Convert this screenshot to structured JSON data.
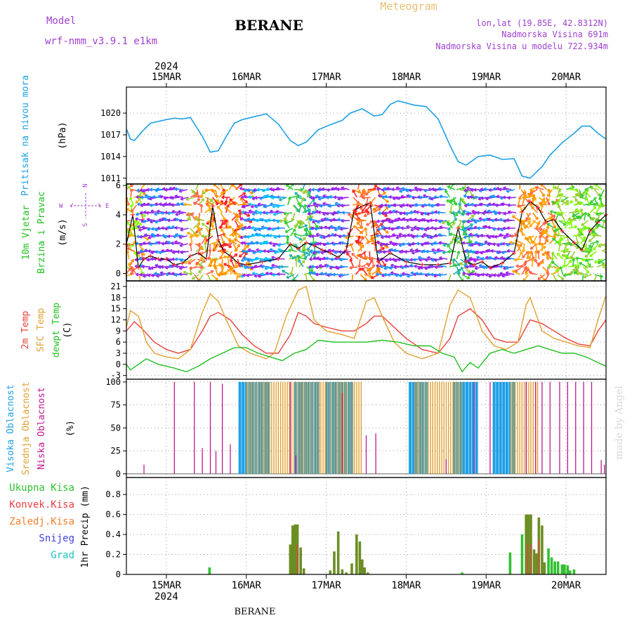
{
  "header": {
    "model_label": "Model",
    "model_name": "wrf-nmm_v3.9.1 e1km",
    "station": "BERANE",
    "product": "Meteogram",
    "coords": "lon,lat (19.85E, 42.8312N)",
    "elevation": "Nadmorska Visina 691m",
    "elevation_model": "Nadmorska Visina u modelu 722.934m",
    "footer_station": "BERANE",
    "credit": "made by Angel"
  },
  "colors": {
    "pressure": "#1ea0e6",
    "temp2m": "#e8403a",
    "sfc_temp": "#e0a030",
    "dewpt": "#20c020",
    "high_cloud": "#1ea0e6",
    "mid_cloud": "#e0a030",
    "low_cloud": "#c01890",
    "precip_total": "#30c030",
    "precip_conv": "#e84040",
    "precip_frozen": "#f08030",
    "precip_snow": "#4040e0",
    "precip_hail": "#20c0c0",
    "compass": "#a040d0"
  },
  "chart_data": {
    "type": "line",
    "x_axis": {
      "year": "2024",
      "ticks": [
        "15MAR",
        "16MAR",
        "17MAR",
        "18MAR",
        "19MAR",
        "20MAR"
      ],
      "range_days": [
        14.5,
        20.5
      ]
    },
    "panels": [
      {
        "id": "pressure",
        "type": "line",
        "ylabel": "Pritisak na nivou mora",
        "unit": "(hPa)",
        "ylim": [
          1010.2,
          1023.6
        ],
        "yticks": [
          1011,
          1014,
          1017,
          1020
        ],
        "series": [
          {
            "x": [
              14.5,
              14.55,
              14.6,
              14.7,
              14.8,
              15.0,
              15.1,
              15.2,
              15.3,
              15.45,
              15.55,
              15.65,
              15.75,
              15.85,
              15.95,
              16.1,
              16.25,
              16.4,
              16.55,
              16.65,
              16.75,
              16.9,
              17.05,
              17.2,
              17.3,
              17.45,
              17.6,
              17.7,
              17.8,
              17.9,
              18.1,
              18.25,
              18.4,
              18.55,
              18.65,
              18.75,
              18.9,
              19.05,
              19.2,
              19.35,
              19.45,
              19.55,
              19.7,
              19.8,
              19.95,
              20.1,
              20.2,
              20.3,
              20.4,
              20.5
            ],
            "y": [
              1017.8,
              1016.4,
              1016.2,
              1017.5,
              1018.6,
              1019.1,
              1019.3,
              1019.2,
              1019.4,
              1016.8,
              1014.6,
              1014.8,
              1016.8,
              1018.6,
              1019.1,
              1019.5,
              1019.9,
              1018.5,
              1016.2,
              1015.5,
              1016.0,
              1017.7,
              1018.4,
              1019.0,
              1020.0,
              1020.6,
              1019.6,
              1019.8,
              1021.2,
              1021.7,
              1021.1,
              1020.9,
              1019.2,
              1015.5,
              1013.3,
              1012.8,
              1014.0,
              1014.2,
              1013.6,
              1013.7,
              1011.3,
              1011.0,
              1012.6,
              1014.2,
              1015.9,
              1017.2,
              1018.2,
              1018.2,
              1017.2,
              1016.4
            ]
          }
        ]
      },
      {
        "id": "wind",
        "type": "line",
        "ylabel": "10m Vjetar Brzina i Pravac",
        "unit": "(m/s)",
        "ylim": [
          -0.5,
          6.1
        ],
        "yticks": [
          0,
          2,
          4,
          6
        ],
        "compass": {
          "north": "N",
          "south": "S",
          "west": "W",
          "east": "E"
        },
        "series": [
          {
            "x": [
              14.5,
              14.58,
              14.65,
              14.72,
              14.8,
              14.9,
              15.0,
              15.1,
              15.2,
              15.3,
              15.4,
              15.5,
              15.58,
              15.65,
              15.72,
              15.8,
              15.9,
              16.0,
              16.2,
              16.4,
              16.55,
              16.65,
              16.75,
              16.85,
              16.95,
              17.05,
              17.15,
              17.25,
              17.35,
              17.45,
              17.55,
              17.65,
              17.8,
              18.0,
              18.2,
              18.4,
              18.55,
              18.65,
              18.75,
              18.85,
              18.95,
              19.05,
              19.2,
              19.35,
              19.45,
              19.55,
              19.65,
              19.75,
              19.85,
              19.95,
              20.1,
              20.2,
              20.3,
              20.4,
              20.5
            ],
            "y": [
              2.0,
              4.0,
              0.4,
              1.0,
              1.2,
              1.0,
              1.0,
              0.6,
              0.7,
              1.2,
              1.4,
              1.0,
              4.6,
              2.3,
              1.5,
              1.2,
              0.7,
              0.6,
              0.8,
              1.0,
              2.0,
              1.7,
              2.1,
              1.9,
              1.6,
              1.4,
              1.1,
              1.6,
              4.3,
              4.6,
              4.8,
              0.8,
              1.4,
              0.8,
              0.6,
              0.6,
              0.7,
              3.1,
              0.8,
              0.6,
              0.8,
              0.4,
              0.7,
              1.4,
              4.2,
              4.9,
              4.5,
              3.5,
              3.7,
              2.9,
              2.1,
              1.6,
              2.9,
              3.5,
              4.0
            ]
          }
        ]
      },
      {
        "id": "temperature",
        "type": "line",
        "ylabel": [
          "2m Temp",
          "SFC Temp",
          "dewpt Temp"
        ],
        "unit": "(C)",
        "ylim": [
          -4,
          22.5
        ],
        "yticks": [
          -3,
          0,
          3,
          6,
          9,
          12,
          15,
          18,
          21
        ],
        "series": [
          {
            "name": "2m Temp",
            "x": [
              14.5,
              14.6,
              14.7,
              14.85,
              15.0,
              15.15,
              15.3,
              15.45,
              15.55,
              15.65,
              15.8,
              15.95,
              16.1,
              16.25,
              16.4,
              16.55,
              16.65,
              16.75,
              16.85,
              17.0,
              17.2,
              17.35,
              17.5,
              17.6,
              17.7,
              17.85,
              18.0,
              18.2,
              18.4,
              18.55,
              18.65,
              18.8,
              18.95,
              19.1,
              19.25,
              19.4,
              19.55,
              19.7,
              19.85,
              20.0,
              20.15,
              20.3,
              20.4,
              20.5
            ],
            "y": [
              9,
              11.5,
              9.5,
              6,
              4,
              3,
              4,
              9,
              13,
              14,
              12,
              8,
              5,
              3,
              3,
              8,
              14,
              13,
              11,
              10,
              9,
              9,
              11,
              13,
              13,
              10,
              7,
              4,
              3,
              7,
              13,
              15,
              12,
              7,
              6,
              6,
              12,
              11,
              9,
              7,
              5.5,
              5,
              9,
              12
            ]
          },
          {
            "name": "SFC Temp",
            "x": [
              14.5,
              14.55,
              14.65,
              14.75,
              14.85,
              15.0,
              15.15,
              15.3,
              15.45,
              15.55,
              15.65,
              15.75,
              15.9,
              16.05,
              16.25,
              16.35,
              16.5,
              16.65,
              16.75,
              16.85,
              17.0,
              17.2,
              17.35,
              17.5,
              17.6,
              17.7,
              17.85,
              18.0,
              18.2,
              18.4,
              18.55,
              18.65,
              18.8,
              18.95,
              19.1,
              19.25,
              19.4,
              19.5,
              19.55,
              19.7,
              19.85,
              20.0,
              20.15,
              20.3,
              20.4,
              20.5
            ],
            "y": [
              10,
              14.5,
              13,
              6,
              3,
              2,
              1.5,
              4,
              14,
              19,
              17,
              12,
              5,
              3,
              1.5,
              3,
              13,
              20,
              21,
              12,
              9,
              8,
              7,
              17,
              18,
              13,
              6,
              3,
              1.5,
              3,
              16,
              20,
              18,
              9,
              5,
              4,
              6,
              16,
              18,
              9,
              7,
              6,
              5,
              4.5,
              12,
              18.5
            ]
          },
          {
            "name": "dewpt Temp",
            "x": [
              14.5,
              14.55,
              14.65,
              14.75,
              14.9,
              15.1,
              15.25,
              15.4,
              15.55,
              15.7,
              15.85,
              16.0,
              16.15,
              16.3,
              16.45,
              16.6,
              16.75,
              16.9,
              17.1,
              17.3,
              17.5,
              17.7,
              17.9,
              18.1,
              18.3,
              18.45,
              18.6,
              18.7,
              18.8,
              18.9,
              19.05,
              19.2,
              19.35,
              19.5,
              19.65,
              19.8,
              19.95,
              20.1,
              20.25,
              20.4,
              20.5
            ],
            "y": [
              0,
              -1.5,
              0,
              1.5,
              0,
              -1,
              -2,
              -0.5,
              1.5,
              3,
              4.5,
              4.5,
              3,
              2,
              1,
              3,
              4,
              6.5,
              6,
              6,
              6,
              6.5,
              6,
              5,
              5,
              3,
              2,
              -2,
              0.5,
              -1,
              3,
              4,
              3,
              4,
              5,
              4,
              3,
              3,
              2,
              0.5,
              -0.5
            ]
          }
        ]
      },
      {
        "id": "clouds",
        "type": "bar",
        "ylabel": [
          "Visoka Oblacnost",
          "Srednja Oblacnost",
          "Niska Oblacnost"
        ],
        "unit": "(%)",
        "ylim": [
          -4,
          103
        ],
        "yticks": [
          0,
          25,
          50,
          75,
          100
        ],
        "series": [
          {
            "name": "Visoka Oblacnost",
            "spans": [
              [
                15.92,
                16.28
              ],
              [
                16.62,
                16.9
              ],
              [
                17.0,
                17.35
              ],
              [
                18.05,
                18.25
              ],
              [
                18.6,
                18.9
              ],
              [
                19.1,
                19.35
              ]
            ],
            "value": 100
          },
          {
            "name": "Srednja Oblacnost",
            "spans": [
              [
                16.0,
                17.45
              ],
              [
                18.1,
                18.7
              ],
              [
                19.3,
                19.65
              ]
            ],
            "value": 100
          },
          {
            "name": "Niska Oblacnost",
            "x": [
              14.72,
              15.1,
              15.35,
              15.45,
              15.55,
              15.62,
              15.7,
              15.8,
              16.55,
              16.62,
              17.2,
              17.5,
              17.62,
              18.5,
              18.85,
              19.05,
              19.5,
              19.62,
              19.7,
              19.8,
              19.92,
              20.02,
              20.12,
              20.22,
              20.32,
              20.44,
              20.48
            ],
            "values": [
              10,
              100,
              100,
              28,
              100,
              25,
              98,
              32,
              100,
              20,
              88,
              42,
              44,
              16,
              100,
              100,
              100,
              100,
              100,
              100,
              100,
              100,
              100,
              100,
              100,
              15,
              10
            ]
          }
        ]
      },
      {
        "id": "precip",
        "type": "bar",
        "ylabel": "1hr Precip",
        "unit": "(mm)",
        "ylim": [
          0,
          0.97
        ],
        "yticks": [
          0,
          0.2,
          0.4,
          0.6,
          0.8
        ],
        "legend": [
          "Ukupna Kisa",
          "Konvek.Kisa",
          "Zaledj.Kisa",
          "Snijeg",
          "Grad"
        ],
        "series": [
          {
            "name": "Ukupna Kisa",
            "x": [
              15.54,
              16.55,
              16.58,
              16.61,
              16.64,
              16.68,
              16.72,
              17.05,
              17.1,
              17.15,
              17.2,
              17.25,
              17.32,
              17.38,
              17.42,
              17.45,
              17.48,
              17.52,
              18.7,
              19.3,
              19.45,
              19.5,
              19.53,
              19.56,
              19.6,
              19.63,
              19.66,
              19.7,
              19.73,
              19.78,
              19.82,
              19.86,
              19.9,
              19.95,
              19.98,
              20.02,
              20.05,
              20.1
            ],
            "values": [
              0.07,
              0.3,
              0.49,
              0.5,
              0.5,
              0.27,
              0.06,
              0.04,
              0.23,
              0.43,
              0.05,
              0.02,
              0.11,
              0.4,
              0.33,
              0.15,
              0.07,
              0.02,
              0.02,
              0.22,
              0.4,
              0.6,
              0.6,
              0.6,
              0.25,
              0.21,
              0.57,
              0.49,
              0.12,
              0.26,
              0.17,
              0.13,
              0.13,
              0.1,
              0.1,
              0.09,
              0.04,
              0.05
            ]
          },
          {
            "name": "Konvek.Kisa",
            "x": [
              16.64,
              19.52,
              19.56,
              19.66
            ],
            "values": [
              0.3,
              0.3,
              0.3,
              0.35
            ]
          }
        ]
      }
    ]
  }
}
